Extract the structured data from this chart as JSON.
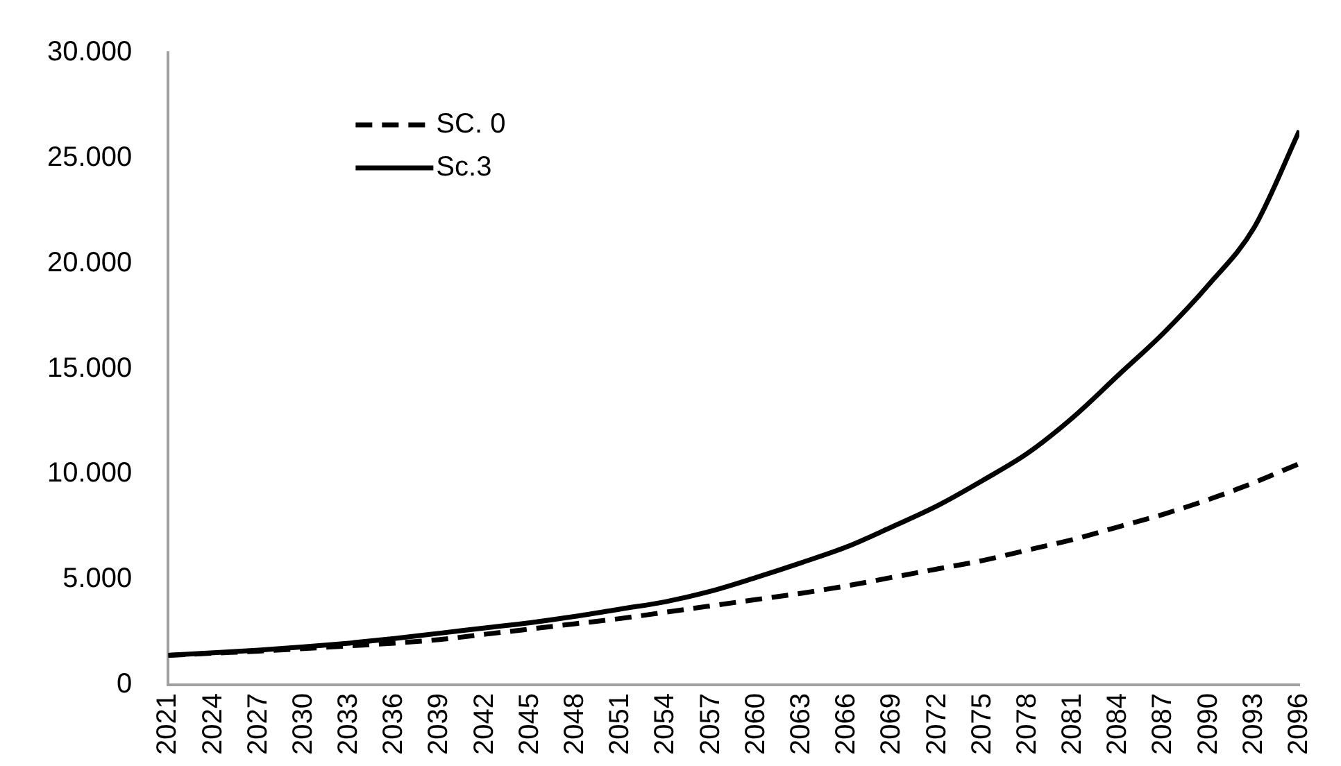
{
  "chart_data": {
    "type": "line",
    "x": [
      2021,
      2024,
      2027,
      2030,
      2033,
      2036,
      2039,
      2042,
      2045,
      2048,
      2051,
      2054,
      2057,
      2060,
      2063,
      2066,
      2069,
      2072,
      2075,
      2078,
      2081,
      2084,
      2087,
      2090,
      2093,
      2096
    ],
    "series": [
      {
        "name": "SC. 0",
        "color": "#000000",
        "line_style": "dashed",
        "values": [
          1400,
          1500,
          1600,
          1720,
          1850,
          1980,
          2150,
          2400,
          2650,
          2900,
          3150,
          3450,
          3750,
          4050,
          4350,
          4700,
          5100,
          5500,
          5900,
          6400,
          6900,
          7500,
          8100,
          8800,
          9600,
          10500
        ]
      },
      {
        "name": "Sc.3",
        "color": "#000000",
        "line_style": "solid",
        "values": [
          1400,
          1520,
          1650,
          1800,
          1980,
          2200,
          2450,
          2700,
          2950,
          3250,
          3600,
          3950,
          4450,
          5100,
          5800,
          6550,
          7500,
          8500,
          9700,
          11000,
          12700,
          14700,
          16700,
          19000,
          21700,
          26300
        ]
      }
    ],
    "xlim": [
      2021,
      2096
    ],
    "xticks": [
      2021,
      2024,
      2027,
      2030,
      2033,
      2036,
      2039,
      2042,
      2045,
      2048,
      2051,
      2054,
      2057,
      2060,
      2063,
      2066,
      2069,
      2072,
      2075,
      2078,
      2081,
      2084,
      2087,
      2090,
      2093,
      2096
    ],
    "ylim": [
      0,
      30000
    ],
    "yticks": [
      0,
      {
        "value": 5000,
        "label": "5.000"
      },
      {
        "value": 10000,
        "label": "10.000"
      },
      {
        "value": 15000,
        "label": "15.000"
      },
      {
        "value": 20000,
        "label": "20.000"
      },
      {
        "value": 25000,
        "label": "25.000"
      },
      {
        "value": 30000,
        "label": "30.000"
      }
    ],
    "grid": false,
    "legend": "top left",
    "marker": "none"
  }
}
